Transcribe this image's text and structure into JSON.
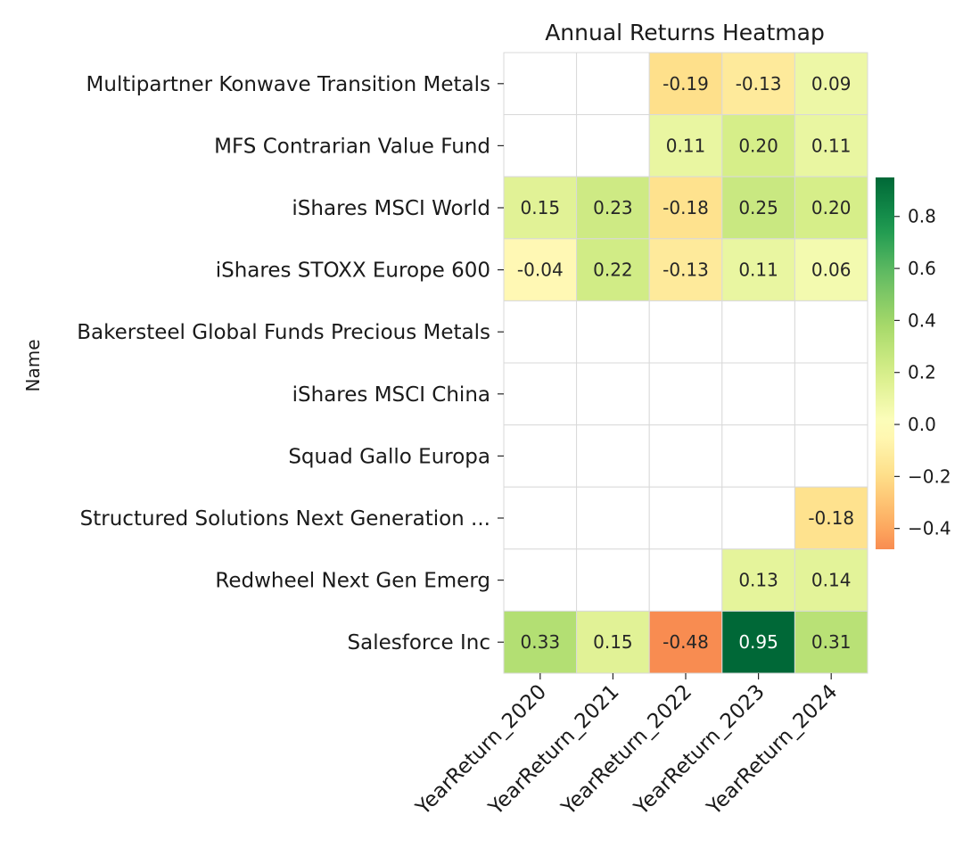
{
  "chart_data": {
    "type": "heatmap",
    "title": "Annual Returns Heatmap",
    "xlabel": "",
    "ylabel": "Name",
    "columns": [
      "YearReturn_2020",
      "YearReturn_2021",
      "YearReturn_2022",
      "YearReturn_2023",
      "YearReturn_2024"
    ],
    "rows": [
      "Multipartner Konwave Transition Metals",
      "MFS Contrarian Value Fund",
      "iShares MSCI World",
      "iShares STOXX Europe 600",
      "Bakersteel Global Funds Precious Metals",
      "iShares MSCI China",
      "Squad Gallo Europa",
      "Structured Solutions Next Generation ...",
      "Redwheel Next Gen Emerg",
      "Salesforce Inc"
    ],
    "values": [
      [
        null,
        null,
        -0.19,
        -0.13,
        0.09
      ],
      [
        null,
        null,
        0.11,
        0.2,
        0.11
      ],
      [
        0.15,
        0.23,
        -0.18,
        0.25,
        0.2
      ],
      [
        -0.04,
        0.22,
        -0.13,
        0.11,
        0.06
      ],
      [
        null,
        null,
        null,
        null,
        null
      ],
      [
        null,
        null,
        null,
        null,
        null
      ],
      [
        null,
        null,
        null,
        null,
        null
      ],
      [
        null,
        null,
        null,
        null,
        -0.18
      ],
      [
        null,
        null,
        null,
        0.13,
        0.14
      ],
      [
        0.33,
        0.15,
        -0.48,
        0.95,
        0.31
      ]
    ],
    "value_format": "0.00",
    "colormap": "RdYlGn",
    "colorbar": {
      "vmin": -0.48,
      "vmax": 0.95,
      "ticks": [
        -0.4,
        -0.2,
        0.0,
        0.2,
        0.4,
        0.6,
        0.8
      ],
      "tick_labels": [
        "−0.4",
        "−0.2",
        "0.0",
        "0.2",
        "0.4",
        "0.6",
        "0.8"
      ]
    },
    "grid": true,
    "legend": "colorbar-right"
  }
}
